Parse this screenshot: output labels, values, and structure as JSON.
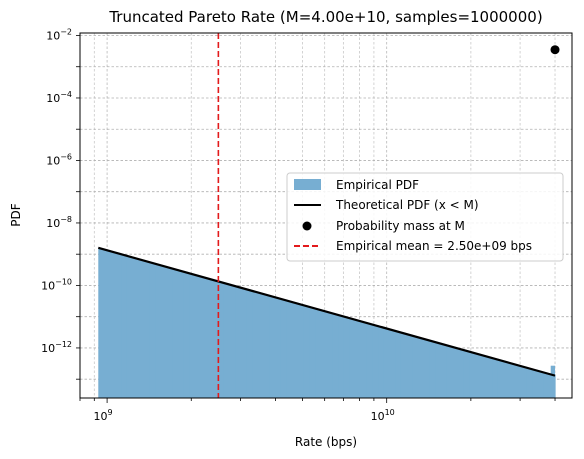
{
  "chart_data": {
    "type": "histogram",
    "title": "Truncated Pareto Rate (M=4.00e+10, samples=1000000)",
    "xlabel": "Rate (bps)",
    "ylabel": "PDF",
    "xscale": "log",
    "yscale": "log",
    "xlim": [
      800000000.0,
      46000000000.0
    ],
    "ylim": [
      2.5e-14,
      0.012
    ],
    "grid": true,
    "legend_position": "center-right",
    "x_tick_labels": [
      {
        "value": 1000000000.0,
        "base": "10",
        "exp": "9"
      },
      {
        "value": 10000000000.0,
        "base": "10",
        "exp": "10"
      }
    ],
    "y_tick_labels": [
      {
        "value": 1e-12,
        "base": "10",
        "exp": "−12"
      },
      {
        "value": 1e-10,
        "base": "10",
        "exp": "−10"
      },
      {
        "value": 1e-08,
        "base": "10",
        "exp": "−8"
      },
      {
        "value": 1e-06,
        "base": "10",
        "exp": "−6"
      },
      {
        "value": 0.0001,
        "base": "10",
        "exp": "−4"
      },
      {
        "value": 0.01,
        "base": "10",
        "exp": "−2"
      }
    ],
    "series": [
      {
        "name": "Empirical PDF",
        "kind": "histogram",
        "color": "#77aed2",
        "x_start": 930000000.0,
        "x_end": 40000000000.0,
        "pdf_start": 1.6e-09,
        "pdf_end": 1.3e-13,
        "spike": {
          "x_from": 38600000000.0,
          "x_to": 40000000000.0,
          "pdf": 2.7e-13
        }
      },
      {
        "name": "Theoretical PDF (x < M)",
        "kind": "line",
        "color": "#000000",
        "x": [
          930000000.0,
          40000000000.0
        ],
        "y": [
          1.6e-09,
          1.3e-13
        ]
      },
      {
        "name": "Probability mass at M",
        "kind": "point",
        "color": "#000000",
        "x": 40000000000.0,
        "y": 0.0035
      },
      {
        "name": "Empirical mean = 2.50e+09 bps",
        "kind": "vline",
        "color": "#e31a1c",
        "x": 2500000000.0
      }
    ]
  }
}
